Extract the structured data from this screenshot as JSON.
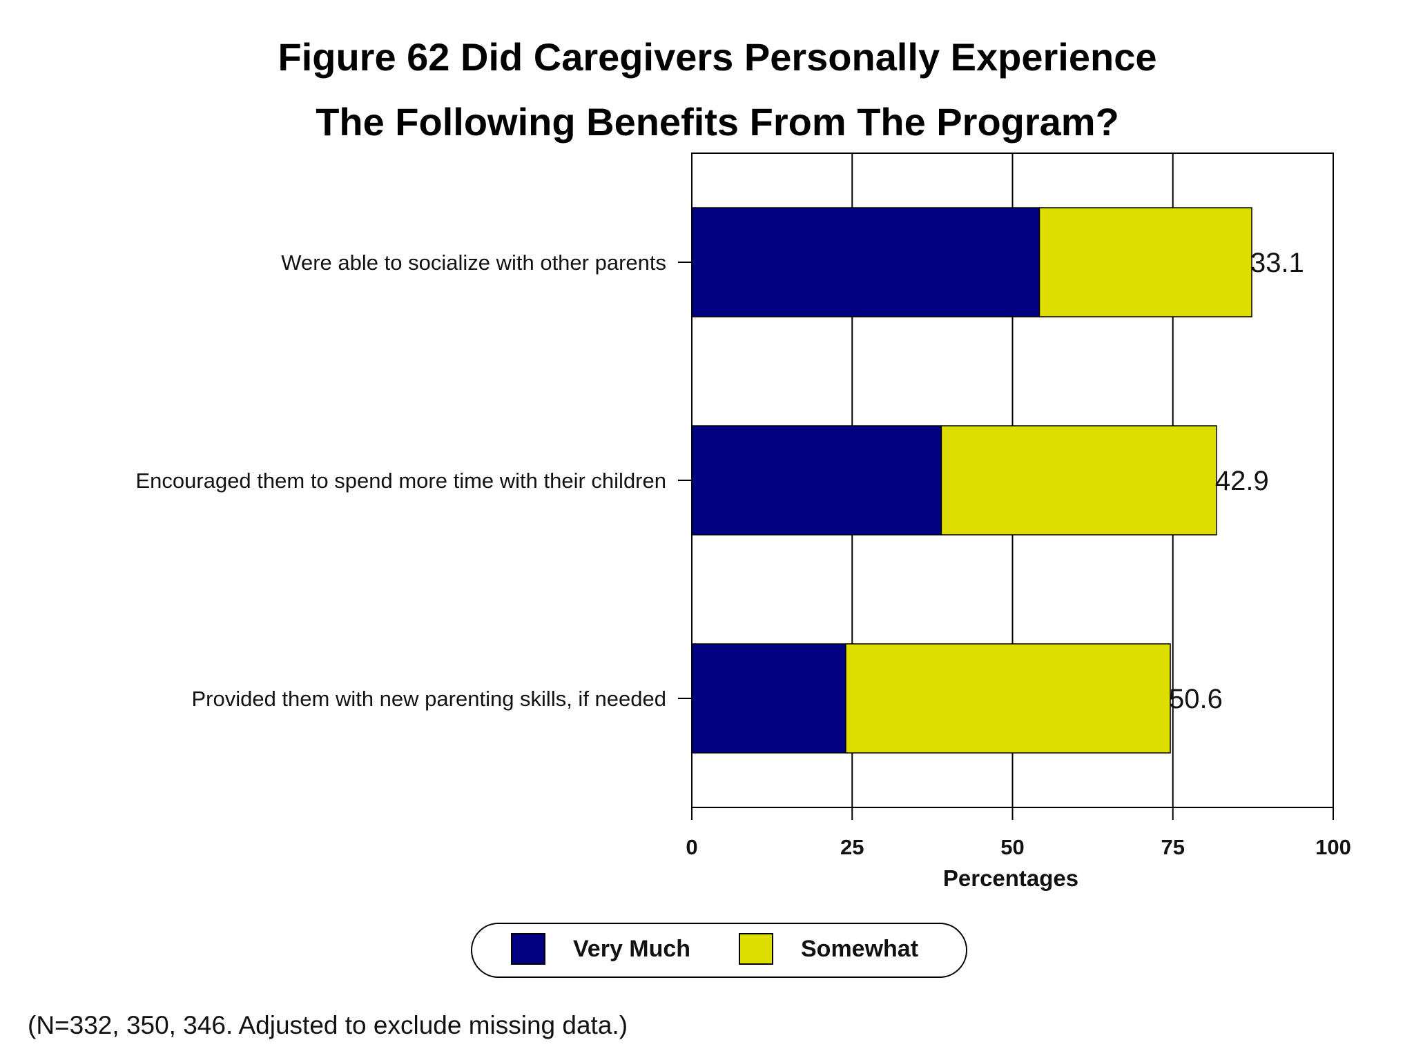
{
  "chart_data": {
    "type": "bar",
    "orientation": "horizontal",
    "stacked": true,
    "title": [
      "Figure 62  Did Caregivers Personally Experience",
      "The Following Benefits From The Program?"
    ],
    "categories": [
      "Were able to socialize with other parents",
      "Encouraged them to spend more time with their children",
      "Provided them with new parenting skills, if needed"
    ],
    "series": [
      {
        "name": "Very Much",
        "color": "#000080",
        "values": [
          54.2,
          38.9,
          24
        ]
      },
      {
        "name": "Somewhat",
        "color": "#DDDD00",
        "values": [
          33.1,
          42.9,
          50.6
        ]
      }
    ],
    "xlabel": "Percentages",
    "ylabel": "",
    "xlim": [
      0,
      100
    ],
    "xticks": [
      0,
      25,
      50,
      75,
      100
    ],
    "grid": true,
    "legend": "bottom-center"
  },
  "footnote": "(N=332, 350, 346. Adjusted to exclude missing data.)"
}
